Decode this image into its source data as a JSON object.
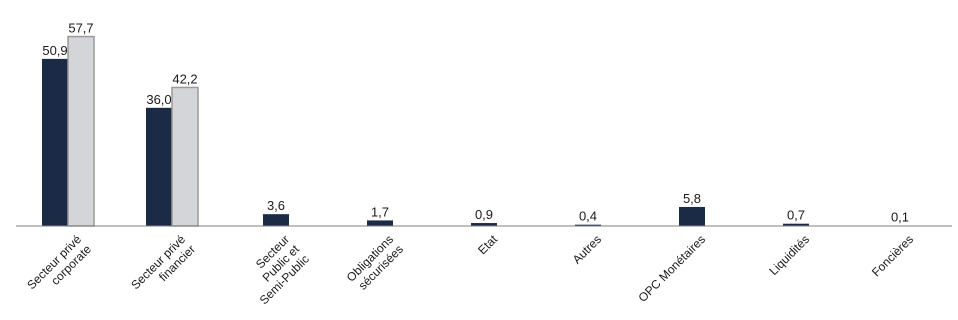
{
  "chart_data": {
    "type": "bar",
    "categories": [
      [
        "Secteur privé",
        "corporate"
      ],
      [
        "Secteur privé",
        "financier"
      ],
      [
        "Secteur",
        "Public et",
        "Semi-Public"
      ],
      [
        "Obligations",
        "sécurisées"
      ],
      [
        "Etat"
      ],
      [
        "Autres"
      ],
      [
        "OPC Monétaires"
      ],
      [
        "Liquidités"
      ],
      [
        "Foncières"
      ]
    ],
    "series": [
      {
        "color": "#1b2a45",
        "values": [
          50.9,
          36.0,
          3.6,
          1.7,
          0.9,
          0.4,
          5.8,
          0.7,
          0.1
        ]
      },
      {
        "color": "#d3d5d9",
        "values": [
          57.7,
          42.2,
          null,
          null,
          null,
          null,
          null,
          null,
          null
        ]
      }
    ],
    "value_labels": [
      [
        "50,9",
        "36,0",
        "3,6",
        "1,7",
        "0,9",
        "0,4",
        "5,8",
        "0,7",
        "0,1"
      ],
      [
        "57,7",
        "42,2",
        null,
        null,
        null,
        null,
        null,
        null,
        null
      ]
    ],
    "ylim": [
      0,
      60
    ],
    "grid": false,
    "legend": "none"
  }
}
